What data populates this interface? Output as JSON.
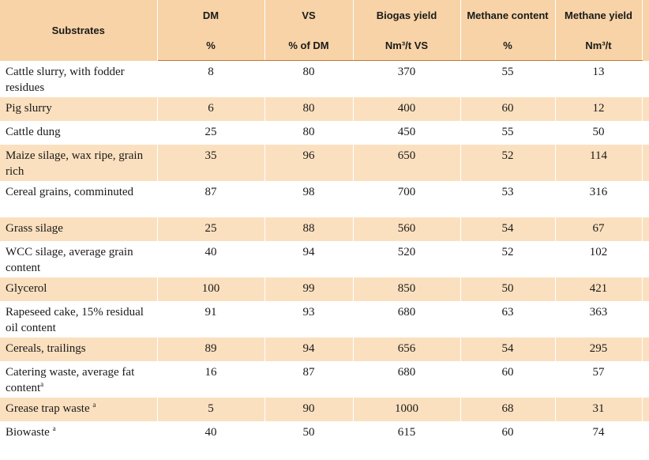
{
  "header": {
    "substrates": "Substrates",
    "dm": "DM",
    "dm_unit": "%",
    "vs": "VS",
    "vs_unit": "% of DM",
    "biogas": "Biogas yield",
    "biogas_unit": "Nm³/t VS",
    "methane_content": "Methane content",
    "methane_content_unit": "%",
    "methane_yield": "Methane yield",
    "methane_yield_unit": "Nm³/t"
  },
  "rows": [
    {
      "name": "Cattle slurry, with fodder residues",
      "dm": "8",
      "vs": "80",
      "biogas": "370",
      "mc": "55",
      "my": "13"
    },
    {
      "name": "Pig slurry",
      "dm": "6",
      "vs": "80",
      "biogas": "400",
      "mc": "60",
      "my": "12"
    },
    {
      "name": "Cattle dung",
      "dm": "25",
      "vs": "80",
      "biogas": "450",
      "mc": "55",
      "my": "50"
    },
    {
      "name": "Maize silage, wax ripe, grain rich",
      "dm": "35",
      "vs": "96",
      "biogas": "650",
      "mc": "52",
      "my": "114"
    },
    {
      "name": "Cereal grains, comminuted",
      "dm": "87",
      "vs": "98",
      "biogas": "700",
      "mc": "53",
      "my": "316"
    },
    {
      "name": "Grass silage",
      "dm": "25",
      "vs": "88",
      "biogas": "560",
      "mc": "54",
      "my": "67"
    },
    {
      "name": "WCC silage, average grain content",
      "dm": "40",
      "vs": "94",
      "biogas": "520",
      "mc": "52",
      "my": "102"
    },
    {
      "name": "Glycerol",
      "dm": "100",
      "vs": "99",
      "biogas": "850",
      "mc": "50",
      "my": "421"
    },
    {
      "name": "Rapeseed cake, 15% residual oil content",
      "dm": "91",
      "vs": "93",
      "biogas": "680",
      "mc": "63",
      "my": "363"
    },
    {
      "name": "Cereals, trailings",
      "dm": "89",
      "vs": "94",
      "biogas": "656",
      "mc": "54",
      "my": "295"
    },
    {
      "name": "Catering waste, average fat content",
      "sup": "a",
      "dm": "16",
      "vs": "87",
      "biogas": "680",
      "mc": "60",
      "my": "57"
    },
    {
      "name": "Grease trap waste ",
      "sup": "a",
      "dm": "5",
      "vs": "90",
      "biogas": "1000",
      "mc": "68",
      "my": "31"
    },
    {
      "name": "Biowaste ",
      "sup": "a",
      "dm": "40",
      "vs": "50",
      "biogas": "615",
      "mc": "60",
      "my": "74"
    }
  ]
}
